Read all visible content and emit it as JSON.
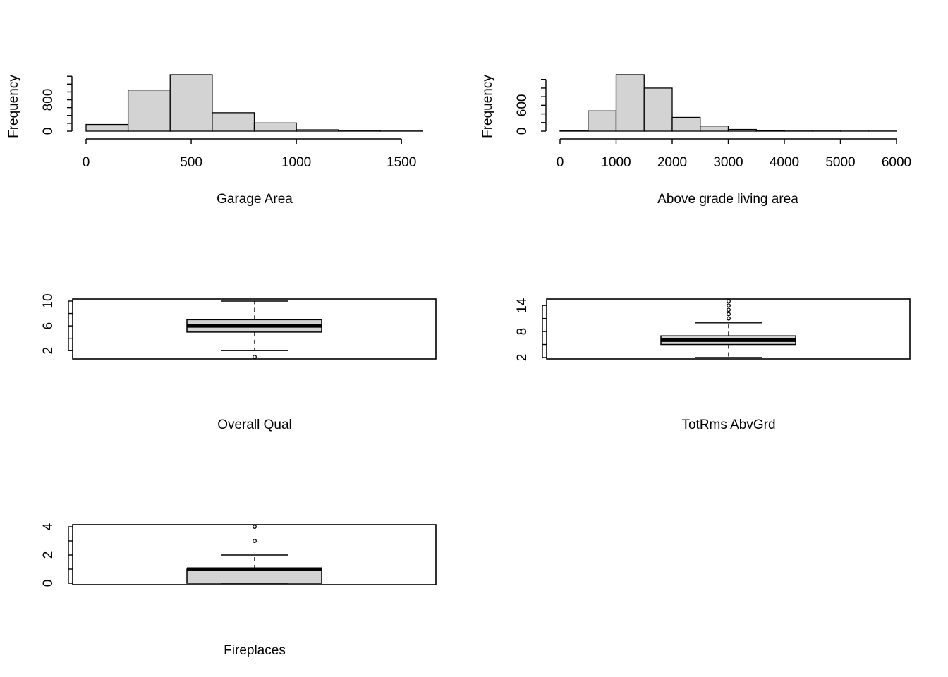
{
  "colors": {
    "fill": "#d3d3d3",
    "line": "#000000",
    "background": "#ffffff"
  },
  "chart_data": [
    {
      "type": "histogram",
      "xlabel": "Garage Area",
      "ylabel": "Frequency",
      "bins": [
        [
          0,
          200
        ],
        [
          200,
          400
        ],
        [
          400,
          600
        ],
        [
          600,
          800
        ],
        [
          800,
          1000
        ],
        [
          1000,
          1200
        ],
        [
          1200,
          1400
        ],
        [
          1400,
          1600
        ]
      ],
      "values": [
        170,
        1050,
        1440,
        470,
        210,
        35,
        5,
        3
      ],
      "xticks": [
        "0",
        "500",
        "1000",
        "1500"
      ],
      "yticks": [
        "0",
        "800"
      ],
      "xlim": [
        0,
        1600
      ],
      "ylim": [
        0,
        1440
      ]
    },
    {
      "type": "histogram",
      "xlabel": "Above grade living area",
      "ylabel": "Frequency",
      "bins": [
        [
          0,
          500
        ],
        [
          500,
          1000
        ],
        [
          1000,
          1500
        ],
        [
          1500,
          2000
        ],
        [
          2000,
          2500
        ],
        [
          2500,
          3000
        ],
        [
          3000,
          3500
        ],
        [
          3500,
          4000
        ],
        [
          4000,
          4500
        ],
        [
          4500,
          5000
        ],
        [
          5000,
          5500
        ],
        [
          5500,
          6000
        ]
      ],
      "values": [
        5,
        470,
        1310,
        1000,
        320,
        120,
        40,
        10,
        3,
        3,
        2,
        2
      ],
      "xticks": [
        "0",
        "1000",
        "2000",
        "3000",
        "4000",
        "5000",
        "6000"
      ],
      "yticks": [
        "0",
        "600"
      ],
      "xlim": [
        0,
        6000
      ],
      "ylim": [
        0,
        1310
      ]
    },
    {
      "type": "boxplot",
      "xlabel": "Overall Qual",
      "stats": {
        "min": 2,
        "q1": 5,
        "median": 6,
        "q3": 7,
        "max": 10
      },
      "outliers": [
        1
      ],
      "yticks": [
        "2",
        "6",
        "10"
      ],
      "ylim": [
        1,
        10
      ]
    },
    {
      "type": "boxplot",
      "xlabel": "TotRms AbvGrd",
      "stats": {
        "min": 2,
        "q1": 5,
        "median": 6,
        "q3": 7,
        "max": 10
      },
      "outliers": [
        11,
        12,
        13,
        14,
        15
      ],
      "yticks": [
        "2",
        "8",
        "14"
      ],
      "ylim": [
        2,
        15
      ]
    },
    {
      "type": "boxplot",
      "xlabel": "Fireplaces",
      "stats": {
        "min": 0,
        "q1": 0,
        "median": 1,
        "q3": 1,
        "max": 2
      },
      "outliers": [
        3,
        4
      ],
      "yticks": [
        "0",
        "2",
        "4"
      ],
      "ylim": [
        0,
        4
      ]
    }
  ]
}
